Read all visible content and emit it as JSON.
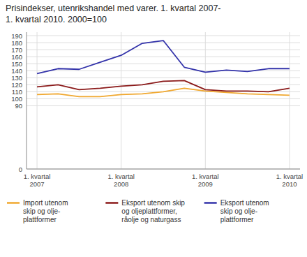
{
  "chart_data": {
    "type": "line",
    "title": "Prisindekser, utenrikshandel med varer. 1. kvartal 2007-",
    "subtitle": "1. kvartal 2010. 2000=100",
    "categories": [
      "1. kvartal\n2007",
      null,
      null,
      null,
      "1. kvartal\n2008",
      null,
      null,
      null,
      "1. kvartal\n2009",
      null,
      null,
      null,
      "1. kvartal\n2010"
    ],
    "series": [
      {
        "name": "Import utenom\nskip og olje-\nplattformer",
        "color": "#f0a830",
        "values": [
          106,
          107,
          103,
          103,
          106,
          107,
          110,
          115,
          111,
          109,
          107,
          106,
          105
        ]
      },
      {
        "name": "Eksport utenom skip\nog oljeplattformer,\nråolje og naturgass",
        "color": "#8b1a1a",
        "values": [
          117,
          120,
          113,
          115,
          118,
          120,
          125,
          126,
          113,
          111,
          111,
          110,
          115
        ]
      },
      {
        "name": "Eksport utenom\nskip og olje-\nplattformer",
        "color": "#3333aa",
        "values": [
          136,
          143,
          142,
          152,
          162,
          179,
          183,
          145,
          138,
          141,
          139,
          143,
          143
        ]
      }
    ],
    "ylim": [
      0,
      195
    ],
    "yticks": [
      0,
      90,
      100,
      110,
      120,
      130,
      140,
      150,
      160,
      170,
      180,
      190
    ],
    "grid": true,
    "legend": "bottom"
  }
}
